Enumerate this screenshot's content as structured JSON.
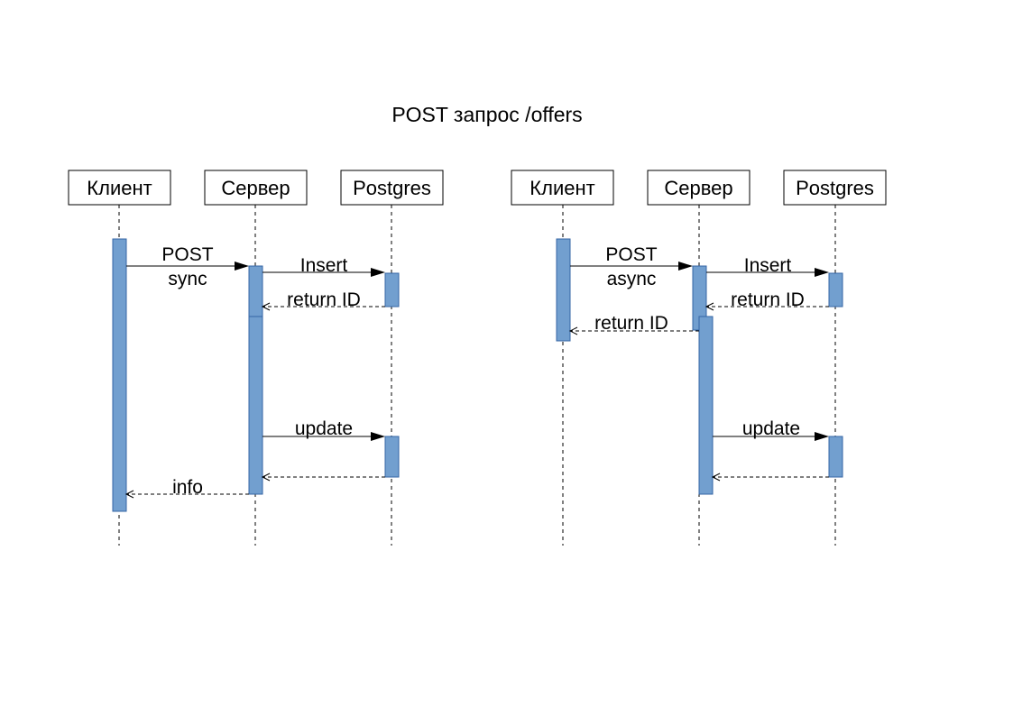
{
  "title": "POST запрос /offers",
  "diagrams": [
    {
      "participants": [
        "Клиент",
        "Сервер",
        "Postgres"
      ],
      "messages": [
        {
          "label": [
            "POST",
            "sync"
          ],
          "from": 0,
          "to": 1,
          "type": "sync"
        },
        {
          "label": [
            "Insert"
          ],
          "from": 1,
          "to": 2,
          "type": "sync"
        },
        {
          "label": [
            "return ID"
          ],
          "from": 2,
          "to": 1,
          "type": "return"
        },
        {
          "label": [
            "update"
          ],
          "from": 1,
          "to": 2,
          "type": "sync"
        },
        {
          "label": [],
          "from": 2,
          "to": 1,
          "type": "return"
        },
        {
          "label": [
            "info"
          ],
          "from": 1,
          "to": 0,
          "type": "return"
        }
      ]
    },
    {
      "participants": [
        "Клиент",
        "Сервер",
        "Postgres"
      ],
      "messages": [
        {
          "label": [
            "POST",
            "async"
          ],
          "from": 0,
          "to": 1,
          "type": "sync"
        },
        {
          "label": [
            "Insert"
          ],
          "from": 1,
          "to": 2,
          "type": "sync"
        },
        {
          "label": [
            "return ID"
          ],
          "from": 2,
          "to": 1,
          "type": "return"
        },
        {
          "label": [
            "return ID"
          ],
          "from": 1,
          "to": 0,
          "type": "return"
        },
        {
          "label": [
            "update"
          ],
          "from": 1,
          "to": 2,
          "type": "sync"
        },
        {
          "label": [],
          "from": 2,
          "to": 1,
          "type": "return"
        }
      ]
    }
  ],
  "colors": {
    "activation_fill": "#729fcf",
    "activation_stroke": "#3465a4",
    "line": "#000000"
  }
}
